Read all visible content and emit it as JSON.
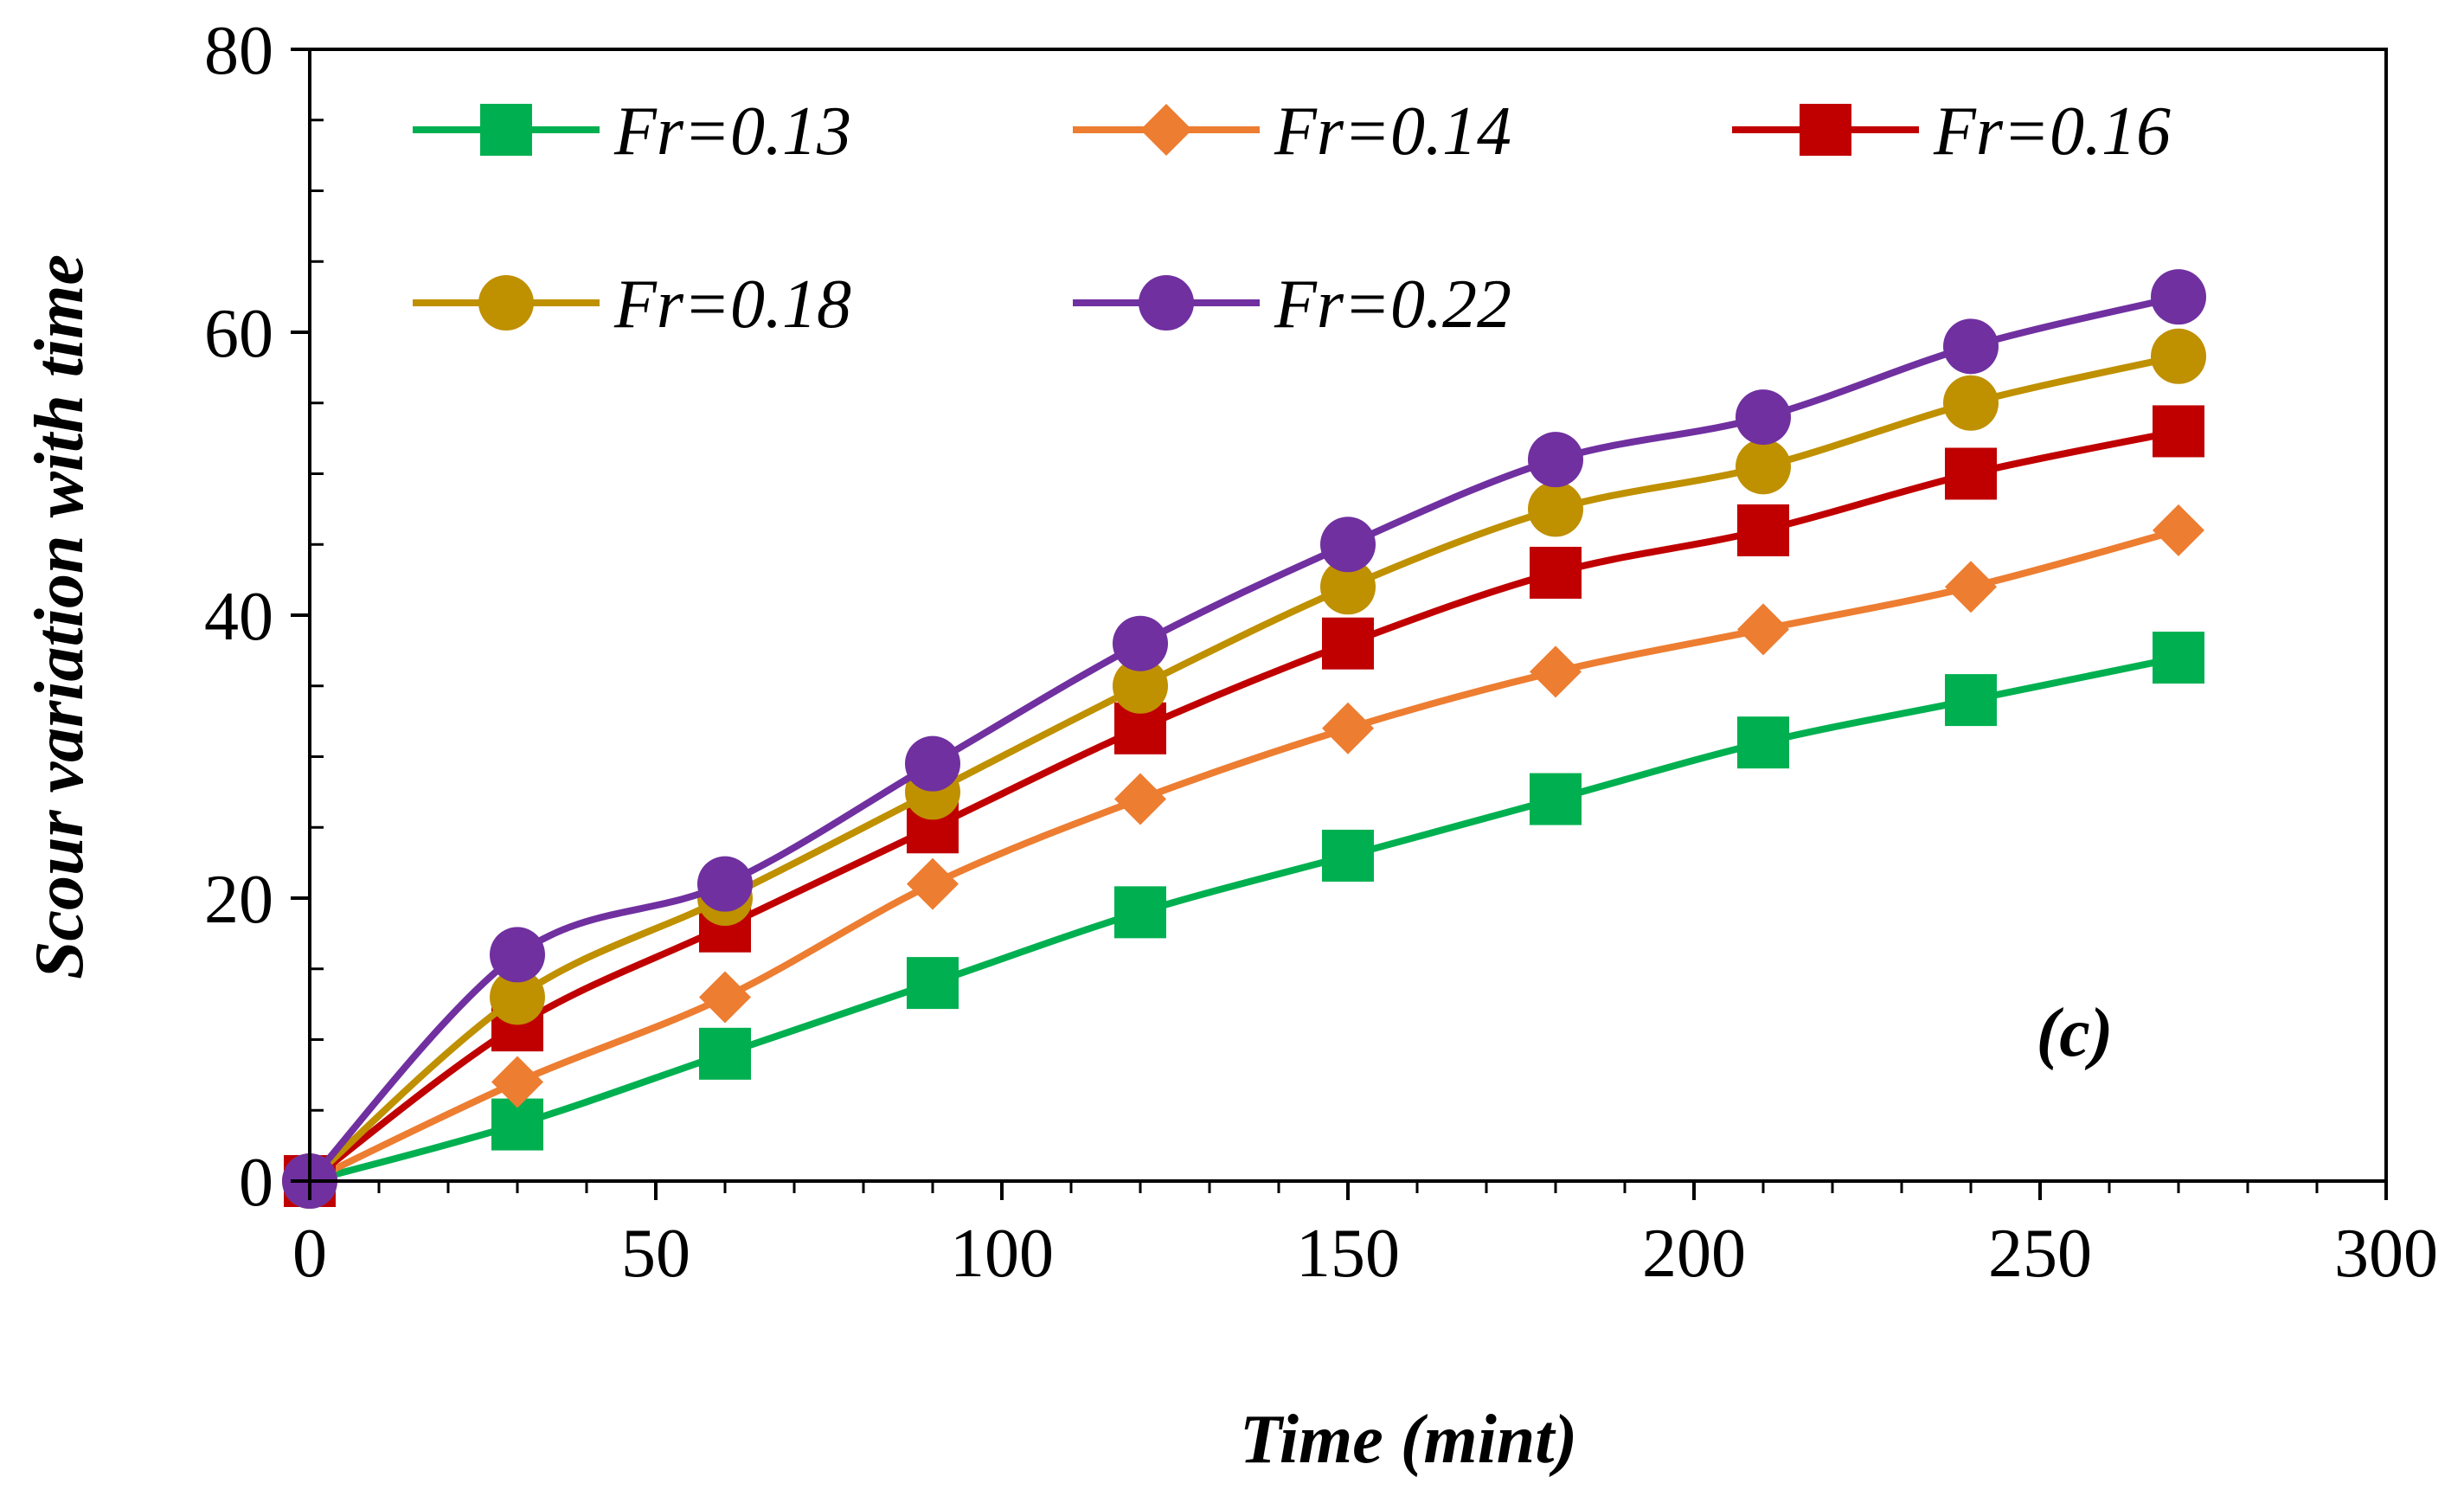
{
  "chart_data": {
    "type": "line",
    "xlabel": "Time (mint)",
    "ylabel": "Scour variation with time",
    "xlim": [
      0,
      300
    ],
    "ylim": [
      0,
      80
    ],
    "xticks": [
      0,
      50,
      100,
      150,
      200,
      250,
      300
    ],
    "yticks": [
      0,
      20,
      40,
      60,
      80
    ],
    "grid": false,
    "legend_position": "top",
    "annotation": "(c)",
    "x": [
      0,
      30,
      60,
      90,
      120,
      150,
      180,
      210,
      240,
      270
    ],
    "series": [
      {
        "name": "Fr=0.13",
        "color": "#00b050",
        "marker": "square",
        "values": [
          0,
          4,
          9,
          14,
          19,
          23,
          27,
          31,
          34,
          37
        ]
      },
      {
        "name": "Fr=0.14",
        "color": "#ed7d31",
        "marker": "diamond",
        "values": [
          0,
          7,
          13,
          21,
          27,
          32,
          36,
          39,
          42,
          46
        ]
      },
      {
        "name": "Fr=0.16",
        "color": "#c00000",
        "marker": "square",
        "values": [
          0,
          11,
          18,
          25,
          32,
          38,
          43,
          46,
          50,
          53
        ]
      },
      {
        "name": "Fr=0.18",
        "color": "#bf9000",
        "marker": "circle",
        "values": [
          0,
          13,
          20,
          27.5,
          35,
          42,
          47.5,
          50.5,
          55,
          58.3
        ]
      },
      {
        "name": "Fr=0.22",
        "color": "#7030a0",
        "marker": "circle",
        "values": [
          0,
          16,
          21,
          29.5,
          38,
          45,
          51,
          54,
          59,
          62.5
        ]
      }
    ]
  }
}
